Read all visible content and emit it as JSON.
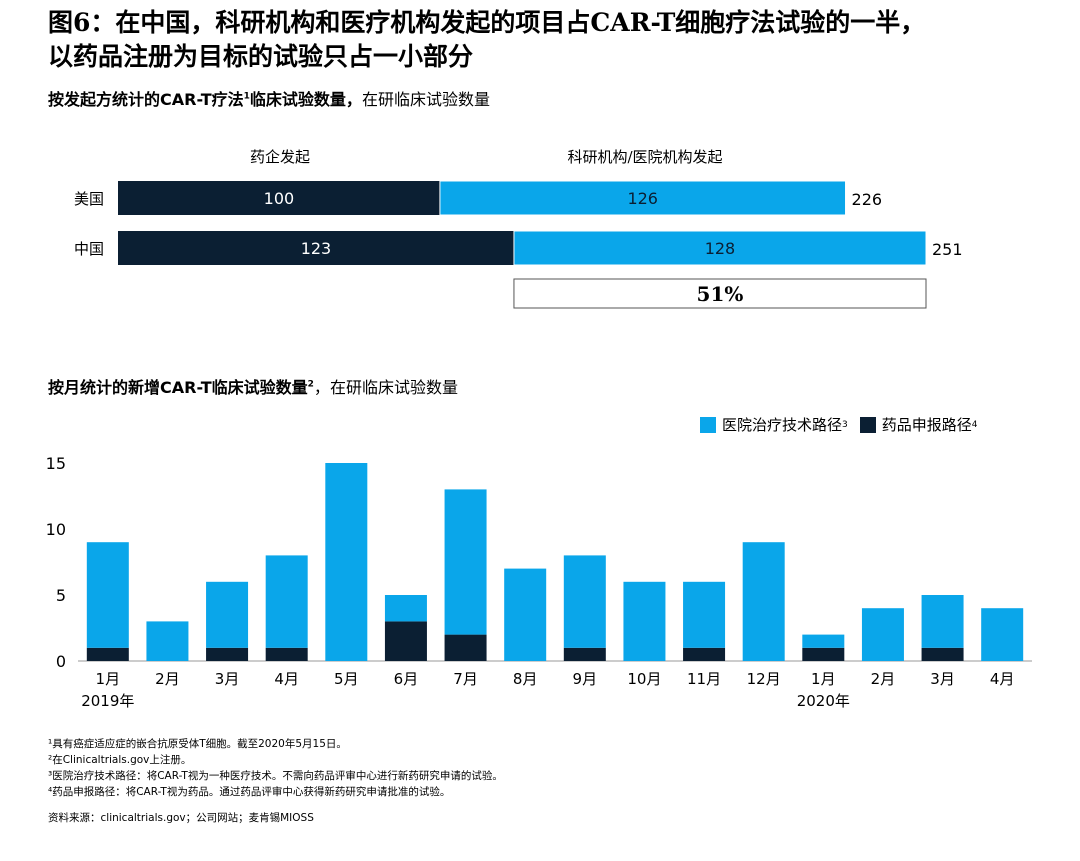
{
  "title": {
    "line1": "图6：在中国，科研机构和医疗机构发起的项目占CAR-T细胞疗法试验的一半，",
    "line2": "以药品注册为目标的试验只占一小部分"
  },
  "colors": {
    "dark": "#0b1f33",
    "light": "#0aa6ea"
  },
  "chart_data": [
    {
      "type": "bar",
      "orientation": "horizontal-stacked",
      "title_bold": "按发起方统计的CAR-T疗法",
      "title_sup": "1",
      "title_bold2": "临床试验数量，",
      "title_normal": "在研临床试验数量",
      "categories": [
        "美国",
        "中国"
      ],
      "series": [
        {
          "name": "药企发起",
          "values": [
            100,
            123
          ]
        },
        {
          "name": "科研机构/医院机构发起",
          "values": [
            126,
            128
          ]
        }
      ],
      "totals": [
        "226",
        "251"
      ],
      "annotation": "51%",
      "xlim": [
        0,
        251
      ]
    },
    {
      "type": "bar",
      "orientation": "vertical-stacked",
      "title_bold": "按月统计的新增CAR-T临床试验数量",
      "title_sup": "2",
      "title_normal": "在研临床试验数量",
      "categories": [
        "1月",
        "2月",
        "3月",
        "4月",
        "5月",
        "6月",
        "7月",
        "8月",
        "9月",
        "10月",
        "11月",
        "12月",
        "1月",
        "2月",
        "3月",
        "4月"
      ],
      "year_labels": [
        {
          "index": 0,
          "text": "2019年"
        },
        {
          "index": 12,
          "text": "2020年"
        }
      ],
      "series": [
        {
          "name": "医院治疗技术路径",
          "sup": "3",
          "values": [
            8,
            3,
            5,
            7,
            15,
            2,
            11,
            7,
            7,
            6,
            5,
            9,
            1,
            4,
            4,
            4
          ]
        },
        {
          "name": "药品申报路径",
          "sup": "4",
          "values": [
            1,
            0,
            1,
            1,
            0,
            3,
            2,
            0,
            1,
            0,
            1,
            0,
            1,
            0,
            1,
            0
          ]
        }
      ],
      "yticks": [
        "0",
        "5",
        "10",
        "15"
      ],
      "ylim": [
        0,
        15
      ]
    }
  ],
  "notes": [
    "¹具有癌症适应症的嵌合抗原受体T细胞。截至2020年5月15日。",
    "²在Clinicaltrials.gov上注册。",
    "³医院治疗技术路径：将CAR-T视为一种医疗技术。不需向药品评审中心进行新药研究申请的试验。",
    "⁴药品申报路径：将CAR-T视为药品。通过药品评审中心获得新药研究申请批准的试验。"
  ],
  "source": "资料来源：clinicaltrials.gov；公司网站；麦肯锡MIOSS"
}
